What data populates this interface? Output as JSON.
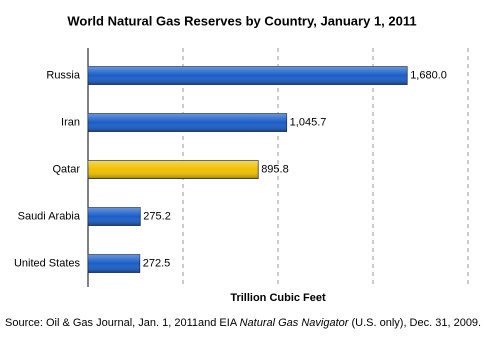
{
  "chart_data": {
    "type": "hbar",
    "title": "World Natural Gas Reserves by Country, January 1, 2011",
    "x_label": "Trillion Cubic Feet",
    "source": [
      "Source: Oil & Gas Journal, Jan. 1, 2011and EIA ",
      "Natural Gas Navigator",
      " (U.S. only), Dec. 31, 2009."
    ],
    "categories": [
      "Russia",
      "Iran",
      "Qatar",
      "Saudi Arabia",
      "United States"
    ],
    "values": [
      1680.0,
      1045.7,
      895.8,
      275.2,
      272.5
    ],
    "value_labels": [
      "1,680.0",
      "1,045.7",
      "895.8",
      "275.2",
      "272.5"
    ],
    "colors": [
      "#1a5ec8",
      "#1a5ec8",
      "#f0c000",
      "#1a5ec8",
      "#1a5ec8"
    ],
    "xlim": [
      0,
      2000
    ],
    "xticks": [
      500,
      1000,
      1500,
      2000
    ],
    "grid": true
  }
}
